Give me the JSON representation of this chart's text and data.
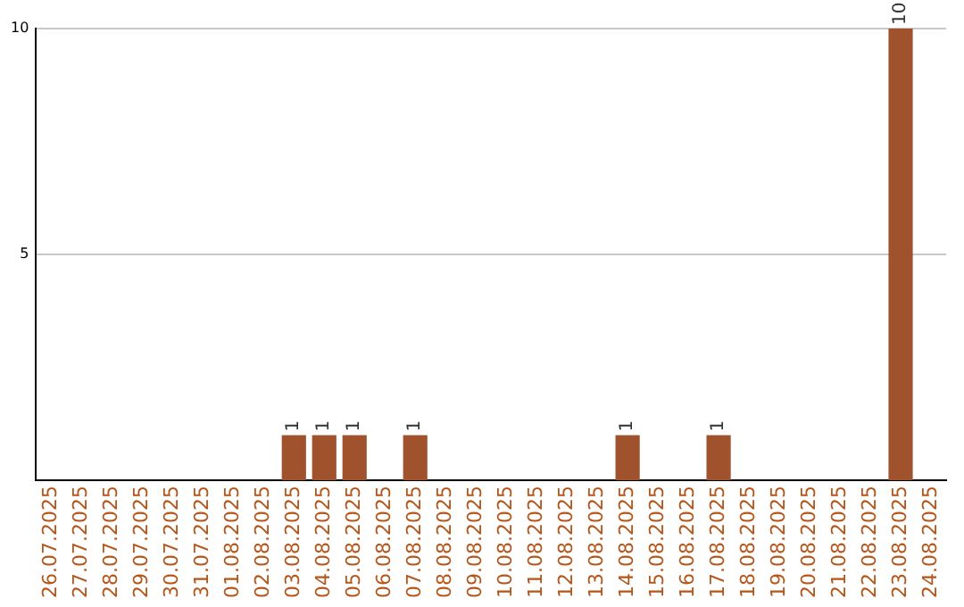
{
  "chart_data": {
    "type": "bar",
    "categories": [
      "26.07.2025",
      "27.07.2025",
      "28.07.2025",
      "29.07.2025",
      "30.07.2025",
      "31.07.2025",
      "01.08.2025",
      "02.08.2025",
      "03.08.2025",
      "04.08.2025",
      "05.08.2025",
      "06.08.2025",
      "07.08.2025",
      "08.08.2025",
      "09.08.2025",
      "10.08.2025",
      "11.08.2025",
      "12.08.2025",
      "13.08.2025",
      "14.08.2025",
      "15.08.2025",
      "16.08.2025",
      "17.08.2025",
      "18.08.2025",
      "19.08.2025",
      "20.08.2025",
      "21.08.2025",
      "22.08.2025",
      "23.08.2025",
      "24.08.2025"
    ],
    "values": [
      0,
      0,
      0,
      0,
      0,
      0,
      0,
      0,
      1,
      1,
      1,
      0,
      1,
      0,
      0,
      0,
      0,
      0,
      0,
      1,
      0,
      0,
      1,
      0,
      0,
      0,
      0,
      0,
      10,
      0
    ],
    "value_labels": [
      null,
      null,
      null,
      null,
      null,
      null,
      null,
      null,
      "1",
      "1",
      "1",
      null,
      "1",
      null,
      null,
      null,
      null,
      null,
      null,
      "1",
      null,
      null,
      "1",
      null,
      null,
      null,
      null,
      null,
      "10",
      null
    ],
    "color": "#a0522d",
    "ylim": [
      0,
      10
    ],
    "yticks": [
      5,
      10
    ],
    "grid": "y",
    "legend": false
  }
}
